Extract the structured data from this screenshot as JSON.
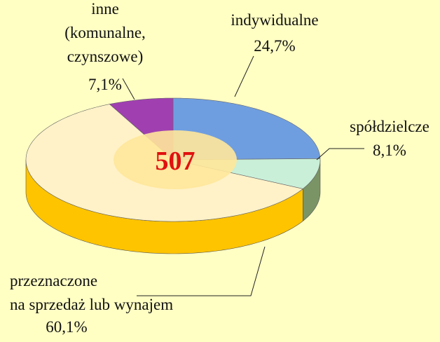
{
  "chart_data": {
    "type": "pie3d",
    "categories": [
      "indywidualne",
      "spółdzielcze",
      "przeznaczone\nna sprzedaż lub wynajem",
      "inne\n(komunalne,\nczynszowe)"
    ],
    "values": [
      24.7,
      8.1,
      60.1,
      7.1
    ],
    "value_labels": [
      "24,7%",
      "8,1%",
      "60,1%",
      "7,1%"
    ],
    "colors": [
      "#6f9ee0",
      "#c9efd8",
      "#fff2c8",
      "#a040b0"
    ],
    "side_colors": [
      "#3d66a8",
      "#7a9466",
      "#ffc400",
      "#6a2078"
    ],
    "total": 507
  }
}
